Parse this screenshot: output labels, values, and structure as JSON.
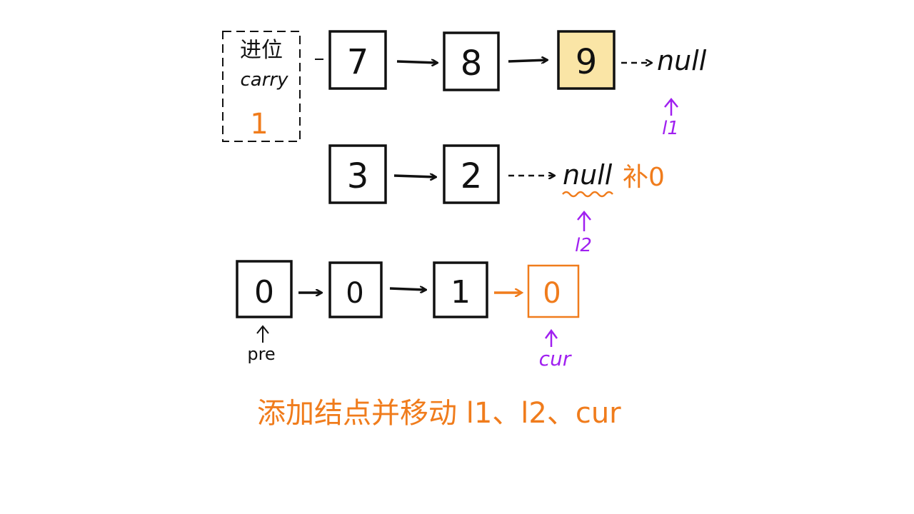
{
  "carry_box": {
    "label_cn": "进位",
    "label_en": "carry",
    "value": "1"
  },
  "list1": {
    "nodes": [
      "7",
      "8",
      "9"
    ],
    "highlight_index": 2,
    "tail": "null",
    "pointer_label": "l1"
  },
  "list2": {
    "nodes": [
      "3",
      "2"
    ],
    "tail": "null",
    "pad_note": "补0",
    "pointer_label": "l2"
  },
  "result": {
    "nodes": [
      "0",
      "0",
      "1",
      "0"
    ],
    "new_index": 3,
    "pre_label": "pre",
    "cur_label": "cur"
  },
  "caption": "添加结点并移动 l1、l2、cur",
  "colors": {
    "ink": "#111111",
    "orange": "#f07c1c",
    "purple": "#a020f0",
    "highlight_fill": "#fae5a6"
  }
}
